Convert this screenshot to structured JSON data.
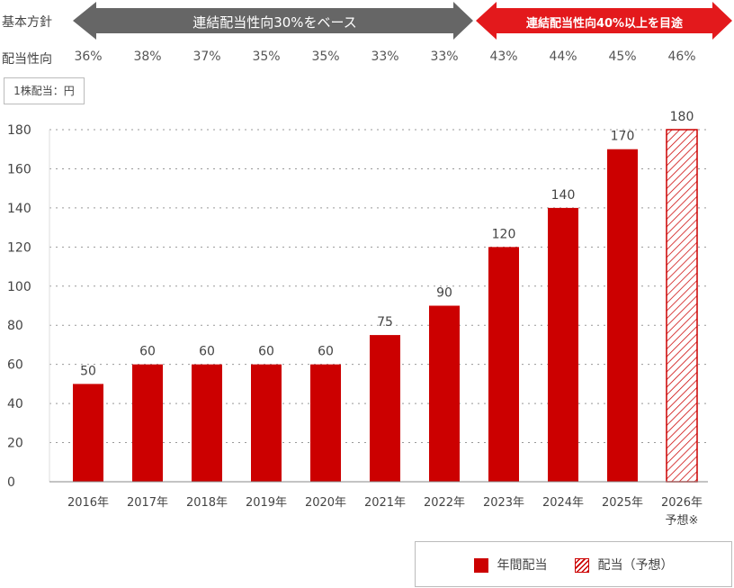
{
  "header": {
    "policy_label": "基本方針",
    "payout_label": "配当性向",
    "policy_gray": "連結配当性向30%をベース",
    "policy_red": "連結配当性向40%以上を目途",
    "payout_ratios": [
      "36%",
      "38%",
      "37%",
      "35%",
      "35%",
      "33%",
      "33%",
      "43%",
      "44%",
      "45%",
      "46%"
    ]
  },
  "unit_label": "1株配当：円",
  "colors": {
    "bar": "#cc0000",
    "gray_arrow": "#666666",
    "red_arrow": "#e3191c"
  },
  "chart_data": {
    "type": "bar",
    "title": "",
    "ylabel": "1株配当：円",
    "ylim": [
      0,
      180
    ],
    "yticks": [
      0,
      20,
      40,
      60,
      80,
      100,
      120,
      140,
      160,
      180
    ],
    "categories": [
      "2016年",
      "2017年",
      "2018年",
      "2019年",
      "2020年",
      "2021年",
      "2022年",
      "2023年",
      "2024年",
      "2025年",
      "2026年"
    ],
    "category_note": "予想※",
    "values": [
      50,
      60,
      60,
      60,
      60,
      75,
      90,
      120,
      140,
      170,
      180
    ],
    "forecast": [
      false,
      false,
      false,
      false,
      false,
      false,
      false,
      false,
      false,
      false,
      true
    ],
    "grid": true,
    "legend": [
      {
        "label": "年間配当",
        "style": "solid"
      },
      {
        "label": "配当（予想）",
        "style": "hatched"
      }
    ],
    "legend_position": "bottom-right"
  }
}
